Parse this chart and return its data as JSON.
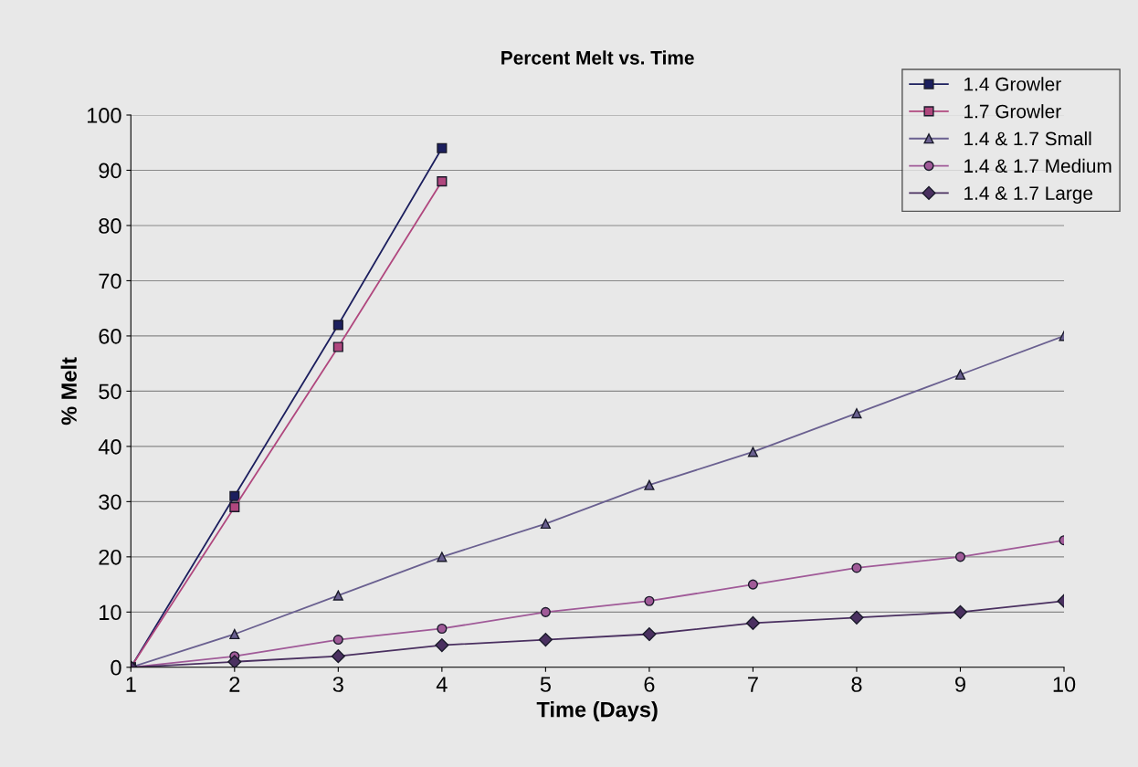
{
  "chart_data": {
    "type": "line",
    "title": "Percent Melt vs. Time",
    "xlabel": "Time (Days)",
    "ylabel": "% Melt",
    "xlim": [
      1,
      10
    ],
    "xticks": [
      1,
      2,
      3,
      4,
      5,
      6,
      7,
      8,
      9,
      10
    ],
    "ylim": [
      0,
      100
    ],
    "yticks": [
      0,
      10,
      20,
      30,
      40,
      50,
      60,
      70,
      80,
      90,
      100
    ],
    "grid": "y",
    "legend": "top right",
    "line_style": "solid",
    "series": [
      {
        "name": "1.4 Growler",
        "color": "#1c1f5e",
        "marker": "square",
        "x": [
          1,
          2,
          3,
          4
        ],
        "values": [
          0,
          31,
          62,
          94
        ]
      },
      {
        "name": "1.7 Growler",
        "color": "#b0477e",
        "marker": "square",
        "x": [
          1,
          2,
          3,
          4
        ],
        "values": [
          0,
          29,
          58,
          88
        ]
      },
      {
        "name": "1.4 & 1.7 Small",
        "color": "#6a6090",
        "marker": "triangle",
        "x": [
          1,
          2,
          3,
          4,
          5,
          6,
          7,
          8,
          9,
          10
        ],
        "values": [
          0,
          6,
          13,
          20,
          26,
          33,
          39,
          46,
          53,
          60
        ]
      },
      {
        "name": "1.4 & 1.7 Medium",
        "color": "#a05a98",
        "marker": "circle",
        "x": [
          1,
          2,
          3,
          4,
          5,
          6,
          7,
          8,
          9,
          10
        ],
        "values": [
          0,
          2,
          5,
          7,
          10,
          12,
          15,
          18,
          20,
          23
        ]
      },
      {
        "name": "1.4 & 1.7 Large",
        "color": "#4a3060",
        "marker": "diamond",
        "x": [
          1,
          2,
          3,
          4,
          5,
          6,
          7,
          8,
          9,
          10
        ],
        "values": [
          0,
          1,
          2,
          4,
          5,
          6,
          8,
          9,
          10,
          12
        ]
      }
    ]
  }
}
